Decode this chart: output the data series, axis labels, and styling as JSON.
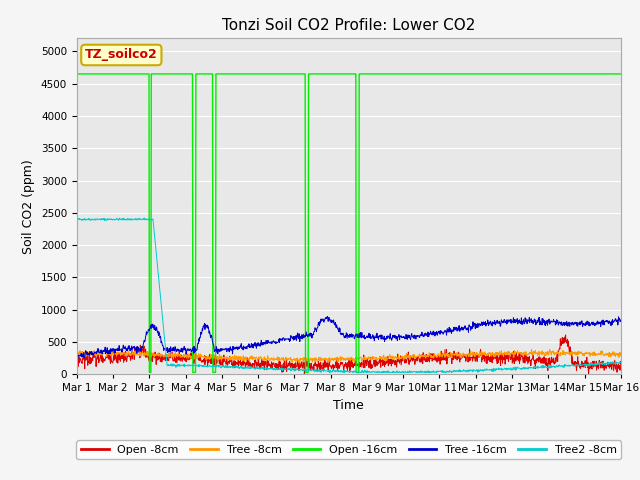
{
  "title": "Tonzi Soil CO2 Profile: Lower CO2",
  "ylabel": "Soil CO2 (ppm)",
  "xlabel": "Time",
  "watermark": "TZ_soilco2",
  "ylim": [
    0,
    5200
  ],
  "yticks": [
    0,
    500,
    1000,
    1500,
    2000,
    2500,
    3000,
    3500,
    4000,
    4500,
    5000
  ],
  "xlim_days": [
    0,
    15
  ],
  "xtick_labels": [
    "Mar 1",
    "Mar 2",
    "Mar 3",
    "Mar 4",
    "Mar 5",
    "Mar 6",
    "Mar 7",
    "Mar 8",
    "Mar 9",
    "Mar 10",
    "Mar 11",
    "Mar 12",
    "Mar 13",
    "Mar 14",
    "Mar 15",
    "Mar 16"
  ],
  "xtick_positions": [
    0,
    1,
    2,
    3,
    4,
    5,
    6,
    7,
    8,
    9,
    10,
    11,
    12,
    13,
    14,
    15
  ],
  "colors": {
    "open_8cm": "#dd0000",
    "tree_8cm": "#ff9900",
    "open_16cm": "#00ee00",
    "tree_16cm": "#0000cc",
    "tree2_8cm": "#00cccc"
  },
  "legend_labels": [
    "Open -8cm",
    "Tree -8cm",
    "Open -16cm",
    "Tree -16cm",
    "Tree2 -8cm"
  ],
  "background_color": "#e8e8e8",
  "grid_color": "#ffffff",
  "title_fontsize": 11,
  "axis_fontsize": 9,
  "tick_fontsize": 7.5,
  "fig_width": 6.4,
  "fig_height": 4.8,
  "dpi": 100,
  "watermark_facecolor": "#ffffcc",
  "watermark_edgecolor": "#ccaa00",
  "watermark_textcolor": "#cc0000"
}
